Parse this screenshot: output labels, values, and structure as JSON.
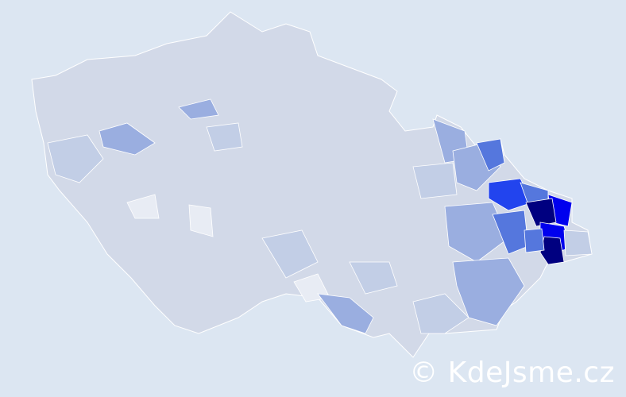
{
  "map": {
    "colors": {
      "background": "#dce6f2",
      "base": "#d2d9e8",
      "light": "#c2cee6",
      "medium": "#9aaee0",
      "strong": "#5577dd",
      "bright": "#2244ee",
      "pure": "#0000ee",
      "dark": "#000080",
      "pale": "#e8ecf4"
    }
  },
  "watermark": "© KdeJsme.cz"
}
